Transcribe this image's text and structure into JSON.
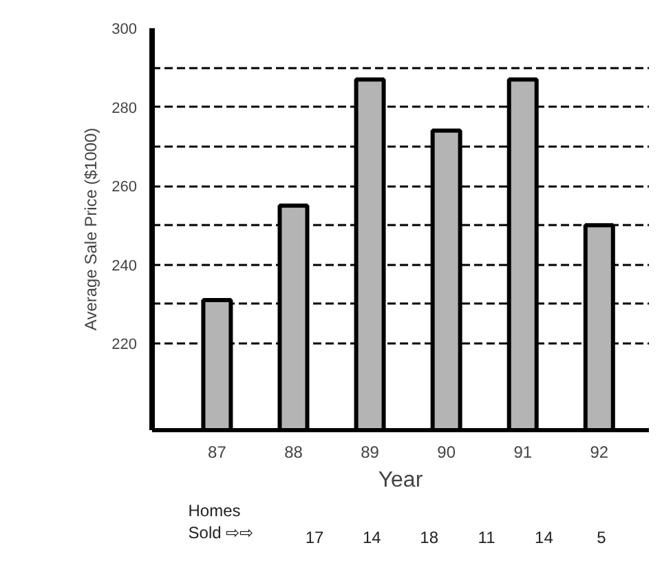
{
  "chart_data": {
    "type": "bar",
    "xlabel": "Year",
    "ylabel": "Average Sale Price ($1000)",
    "categories": [
      "87",
      "88",
      "89",
      "90",
      "91",
      "92"
    ],
    "values": [
      231,
      255,
      287,
      274,
      287,
      250
    ],
    "color": "#b4b4b4",
    "ylim": [
      198,
      300
    ],
    "yticks": [
      {
        "value": 220,
        "label": "220"
      },
      {
        "value": 230,
        "label": null
      },
      {
        "value": 240,
        "label": "240"
      },
      {
        "value": 250,
        "label": null
      },
      {
        "value": 260,
        "label": "260"
      },
      {
        "value": 270,
        "label": null
      },
      {
        "value": 280,
        "label": "280"
      },
      {
        "value": 290,
        "label": null
      },
      {
        "value": 300,
        "label": "300"
      }
    ],
    "grid": "y",
    "line_style": "dashed",
    "annotations": [
      "Homes Sold ⇨⇨",
      "17",
      "14",
      "18",
      "11",
      "14",
      "5"
    ]
  }
}
